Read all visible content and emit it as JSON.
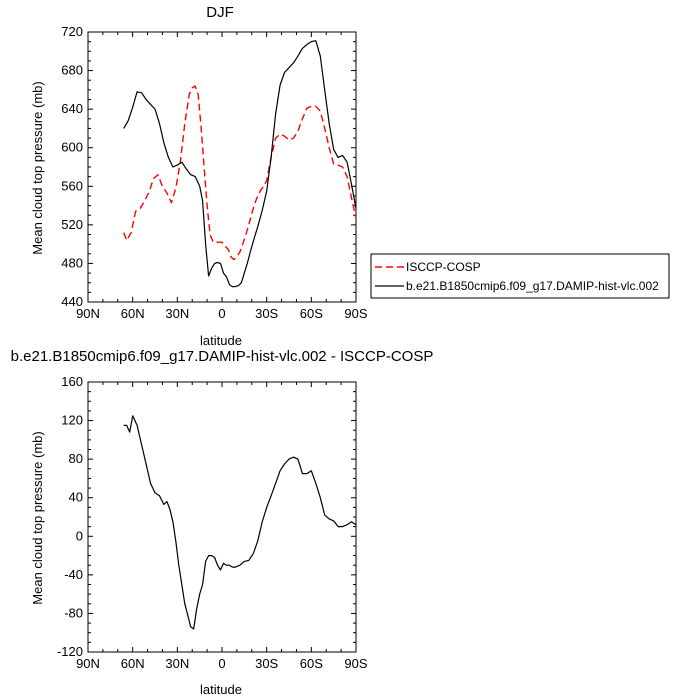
{
  "chart_data": [
    {
      "type": "line",
      "title": "DJF",
      "xlabel": "latitude",
      "ylabel": "Mean cloud top pressure (mb)",
      "xlim": [
        -90,
        90
      ],
      "ylim": [
        440,
        720
      ],
      "x_ticks": [
        -90,
        -60,
        -30,
        0,
        30,
        60,
        90
      ],
      "x_tick_labels": [
        "90N",
        "60N",
        "30N",
        "0",
        "30S",
        "60S",
        "90S"
      ],
      "y_ticks": [
        440,
        480,
        520,
        560,
        600,
        640,
        680,
        720
      ],
      "y_tick_labels": [
        "440",
        "480",
        "520",
        "560",
        "600",
        "640",
        "680",
        "720"
      ],
      "legend_position": "right",
      "series": [
        {
          "name": "ISCCP-COSP",
          "color": "#ff0000",
          "dash": "dashed",
          "x": [
            -66,
            -64,
            -61,
            -58,
            -55,
            -52,
            -49,
            -46,
            -43,
            -40,
            -37,
            -34,
            -31,
            -28,
            -25,
            -22,
            -20,
            -18,
            -16,
            -14,
            -12,
            -10,
            -8,
            -6,
            -4,
            -2,
            0,
            2,
            4,
            6,
            8,
            10,
            12,
            14,
            16,
            18,
            20,
            22,
            24,
            26,
            28,
            30,
            33,
            36,
            39,
            42,
            45,
            48,
            51,
            54,
            57,
            60,
            63,
            66,
            69,
            72,
            75,
            78,
            81,
            84,
            87,
            90
          ],
          "y": [
            512,
            504,
            512,
            534,
            537,
            545,
            554,
            568,
            572,
            560,
            553,
            543,
            558,
            585,
            625,
            655,
            662,
            664,
            655,
            620,
            580,
            540,
            510,
            502,
            502,
            502,
            502,
            498,
            495,
            487,
            484,
            487,
            492,
            500,
            510,
            520,
            532,
            542,
            550,
            556,
            560,
            566,
            590,
            610,
            614,
            612,
            608,
            610,
            617,
            630,
            641,
            643,
            643,
            638,
            620,
            600,
            583,
            582,
            580,
            570,
            548,
            527
          ]
        },
        {
          "name": "b.e21.B1850cmip6.f09_g17.DAMIP-hist-vlc.002",
          "color": "#000000",
          "dash": "solid",
          "x": [
            -66,
            -63,
            -60,
            -57,
            -54,
            -51,
            -48,
            -45,
            -42,
            -39,
            -36,
            -33,
            -30,
            -27,
            -24,
            -21,
            -18,
            -15,
            -13,
            -11,
            -9,
            -7,
            -5,
            -3,
            -1,
            1,
            3,
            5,
            7,
            9,
            11,
            13,
            15,
            17,
            19,
            21,
            24,
            27,
            30,
            33,
            36,
            39,
            42,
            45,
            48,
            51,
            54,
            57,
            60,
            63,
            66,
            69,
            72,
            75,
            78,
            81,
            84,
            87,
            90
          ],
          "y": [
            620,
            628,
            642,
            658,
            657,
            650,
            645,
            640,
            625,
            605,
            590,
            580,
            582,
            585,
            578,
            572,
            570,
            560,
            545,
            500,
            467,
            475,
            480,
            481,
            480,
            470,
            466,
            458,
            456,
            456,
            457,
            460,
            470,
            480,
            492,
            503,
            518,
            535,
            555,
            590,
            635,
            665,
            678,
            683,
            688,
            695,
            703,
            707,
            710,
            711,
            695,
            660,
            625,
            598,
            590,
            592,
            585,
            562,
            537
          ]
        }
      ]
    },
    {
      "type": "line",
      "title": "b.e21.B1850cmip6.f09_g17.DAMIP-hist-vlc.002 - ISCCP-COSP",
      "xlabel": "latitude",
      "ylabel": "Mean cloud top pressure (mb)",
      "xlim": [
        -90,
        90
      ],
      "ylim": [
        -120,
        160
      ],
      "x_ticks": [
        -90,
        -60,
        -30,
        0,
        30,
        60,
        90
      ],
      "x_tick_labels": [
        "90N",
        "60N",
        "30N",
        "0",
        "30S",
        "60S",
        "90S"
      ],
      "y_ticks": [
        -120,
        -80,
        -40,
        0,
        40,
        80,
        120,
        160
      ],
      "y_tick_labels": [
        "-120",
        "-80",
        "-40",
        "0",
        "40",
        "80",
        "120",
        "160"
      ],
      "series": [
        {
          "color": "#000000",
          "dash": "solid",
          "x": [
            -66,
            -64,
            -62,
            -60,
            -57,
            -54,
            -51,
            -48,
            -45,
            -42,
            -39,
            -37,
            -35,
            -33,
            -31,
            -29,
            -27,
            -25,
            -23,
            -21,
            -19,
            -17,
            -15,
            -13,
            -11,
            -9,
            -7,
            -5,
            -3,
            -1,
            1,
            3,
            5,
            7,
            9,
            12,
            15,
            18,
            21,
            24,
            27,
            30,
            33,
            36,
            39,
            42,
            45,
            48,
            51,
            54,
            57,
            60,
            63,
            66,
            69,
            72,
            75,
            78,
            81,
            84,
            87,
            90
          ],
          "y": [
            115,
            115,
            108,
            125,
            115,
            95,
            75,
            55,
            45,
            42,
            33,
            36,
            28,
            15,
            -5,
            -30,
            -50,
            -70,
            -82,
            -94,
            -96,
            -75,
            -60,
            -50,
            -26,
            -20,
            -20,
            -22,
            -30,
            -35,
            -28,
            -30,
            -30,
            -32,
            -32,
            -30,
            -26,
            -25,
            -18,
            -5,
            15,
            30,
            42,
            55,
            68,
            75,
            80,
            82,
            80,
            65,
            65,
            68,
            55,
            40,
            22,
            18,
            16,
            10,
            10,
            12,
            15,
            12
          ]
        }
      ]
    }
  ]
}
